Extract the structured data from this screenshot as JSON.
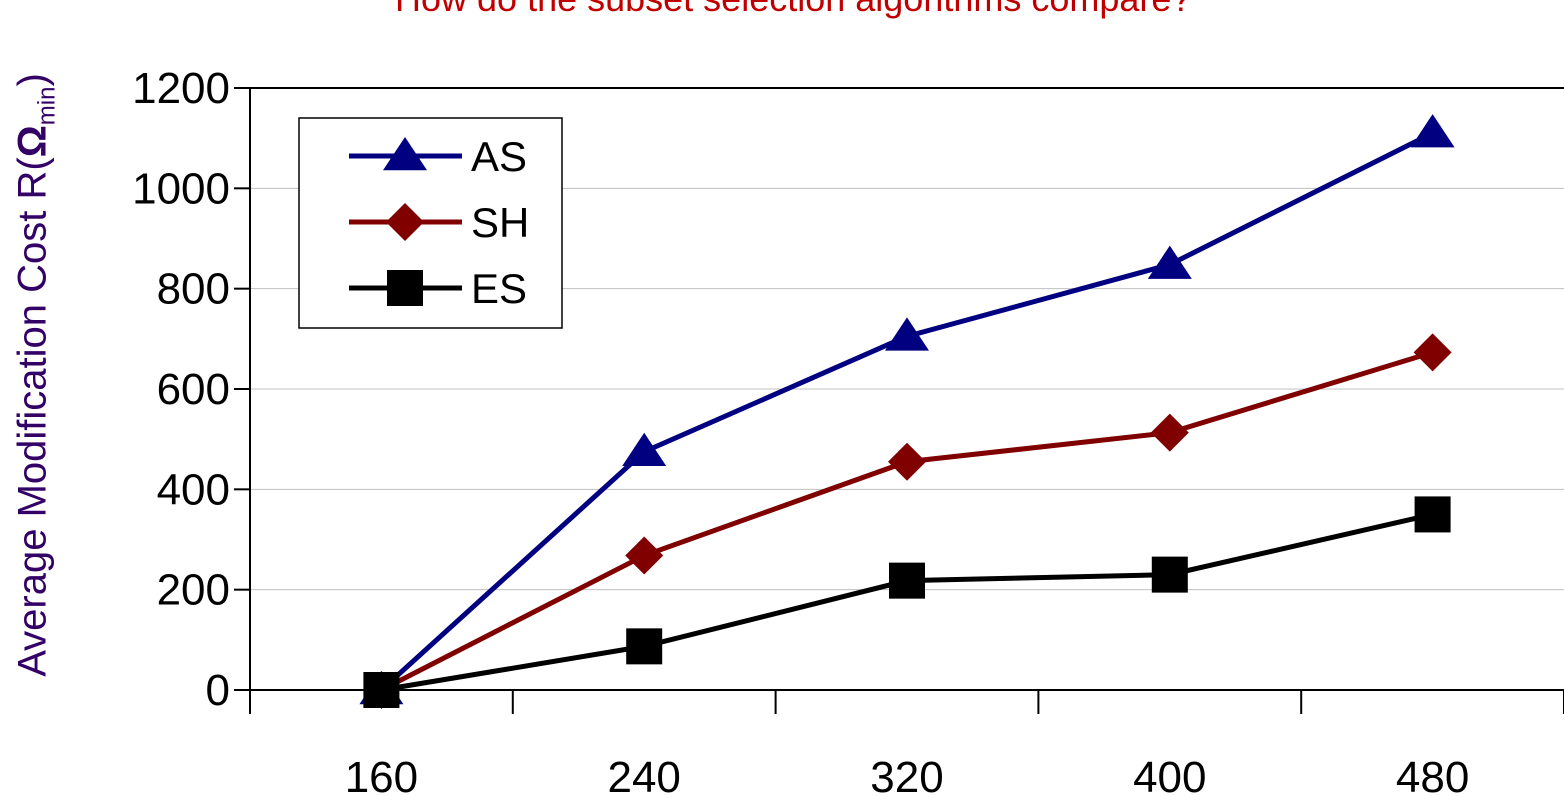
{
  "title": "How do the subset selection algorithms compare?",
  "colors": {
    "AS": "#000080",
    "SH": "#800000",
    "ES": "#000000",
    "title": "#c00000",
    "ylabel": "#330066"
  },
  "chart_data": {
    "type": "line",
    "title": "How do the subset selection algorithms compare?",
    "xlabel": "",
    "ylabel_prefix": "Average Modification Cost R(",
    "ylabel_symbol": "Ω",
    "ylabel_subscript": "min",
    "ylabel_suffix": ")",
    "categories": [
      "160",
      "240",
      "320",
      "400",
      "480"
    ],
    "ylim": [
      0,
      1200
    ],
    "yticks": [
      "0",
      "200",
      "400",
      "600",
      "800",
      "1000",
      "1200"
    ],
    "grid": true,
    "legend_position": "top-left",
    "series": [
      {
        "name": "AS",
        "marker": "triangle",
        "values": [
          0,
          475,
          705,
          848,
          1110
        ]
      },
      {
        "name": "SH",
        "marker": "diamond",
        "values": [
          0,
          268,
          455,
          513,
          673
        ]
      },
      {
        "name": "ES",
        "marker": "square",
        "values": [
          0,
          87,
          218,
          230,
          350
        ]
      }
    ]
  }
}
